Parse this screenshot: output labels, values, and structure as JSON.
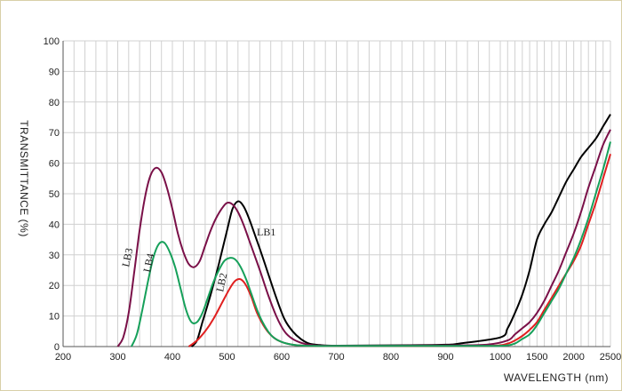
{
  "chart_data": {
    "type": "line",
    "title": "",
    "xlabel": "WAVELENGTH (nm)",
    "ylabel": "TRANSMITTANCE   (%)",
    "xlim": [
      200,
      2500
    ],
    "ylim": [
      0,
      100
    ],
    "grid": true,
    "x_ticks": [
      "200",
      "300",
      "400",
      "500",
      "600",
      "700",
      "800",
      "900",
      "1000",
      "1500",
      "2000",
      "2500"
    ],
    "y_ticks": [
      "0",
      "10",
      "20",
      "30",
      "40",
      "50",
      "60",
      "70",
      "80",
      "90",
      "100"
    ],
    "x_scale": "piecewise: linear 200-1000 nm, compressed 1000-2500 nm",
    "series": [
      {
        "name": "LB1",
        "color": "#000000",
        "x": [
          435,
          445,
          455,
          470,
          485,
          500,
          510,
          520,
          530,
          540,
          550,
          560,
          575,
          590,
          605,
          620,
          635,
          650,
          670,
          700,
          800,
          900,
          925,
          1000,
          1100,
          1200,
          1300,
          1400,
          1500,
          1600,
          1700,
          1800,
          1900,
          2000,
          2100,
          2200,
          2300,
          2400,
          2500
        ],
        "y": [
          0,
          2,
          8,
          17,
          27,
          38,
          45,
          47.5,
          46,
          42,
          37,
          32,
          24,
          16,
          9,
          5,
          2.5,
          1,
          0.5,
          0.3,
          0.4,
          0.6,
          1,
          3,
          6,
          11,
          17,
          25,
          35,
          40,
          44,
          49,
          54,
          58,
          62,
          65,
          68,
          72,
          76
        ]
      },
      {
        "name": "LB2",
        "color": "#e02020",
        "x": [
          430,
          445,
          460,
          475,
          490,
          505,
          515,
          525,
          535,
          545,
          555,
          570,
          585,
          600,
          620,
          640,
          660,
          700,
          800,
          900,
          990,
          1100,
          1200,
          1300,
          1400,
          1500,
          1600,
          1700,
          1800,
          1900,
          2000,
          2100,
          2200,
          2300,
          2400,
          2500
        ],
        "y": [
          0,
          2,
          5,
          9,
          14,
          19,
          21.5,
          22,
          20,
          16,
          11,
          6,
          3,
          1.5,
          0.6,
          0.3,
          0.2,
          0.2,
          0.2,
          0.2,
          0.3,
          1,
          2,
          3.5,
          5.5,
          8,
          12,
          16,
          20,
          24,
          28,
          33,
          40,
          47,
          55,
          63
        ]
      },
      {
        "name": "LB3",
        "color": "#7a1048",
        "x": [
          300,
          310,
          320,
          330,
          340,
          350,
          360,
          370,
          380,
          390,
          400,
          410,
          420,
          430,
          440,
          450,
          460,
          470,
          480,
          490,
          500,
          510,
          520,
          530,
          540,
          550,
          560,
          575,
          590,
          605,
          620,
          640,
          660,
          700,
          800,
          900,
          975,
          1100,
          1200,
          1300,
          1400,
          1500,
          1600,
          1700,
          1800,
          1900,
          2000,
          2100,
          2200,
          2300,
          2400,
          2500
        ],
        "y": [
          0,
          3,
          11,
          24,
          38,
          49,
          56,
          58.5,
          57,
          52,
          45,
          37,
          31,
          27,
          26,
          28,
          33,
          38,
          42,
          45,
          47,
          46.5,
          44,
          40,
          35,
          30,
          25,
          17,
          10,
          5,
          2.5,
          1,
          0.4,
          0.3,
          0.3,
          0.4,
          0.6,
          2,
          4,
          6,
          8,
          11,
          15,
          20,
          25,
          31,
          37,
          44,
          52,
          59,
          66,
          71
        ]
      },
      {
        "name": "LB4",
        "color": "#16a05a",
        "x": [
          325,
          335,
          345,
          355,
          365,
          375,
          385,
          395,
          405,
          415,
          425,
          435,
          445,
          455,
          465,
          475,
          485,
          495,
          505,
          515,
          525,
          535,
          545,
          555,
          565,
          575,
          585,
          600,
          620,
          640,
          660,
          700,
          800,
          900,
          985,
          1100,
          1200,
          1300,
          1400,
          1500,
          1600,
          1700,
          1800,
          1900,
          2000,
          2100,
          2200,
          2300,
          2400,
          2500
        ],
        "y": [
          0,
          4,
          12,
          21,
          29,
          33.5,
          34,
          31,
          26,
          19,
          12,
          8,
          8,
          11,
          16,
          21,
          25,
          28,
          29,
          28.5,
          26,
          22,
          17,
          12,
          8,
          5,
          3,
          1.5,
          0.6,
          0.3,
          0.2,
          0.2,
          0.2,
          0.2,
          0.2,
          0.4,
          1,
          2.5,
          4,
          7,
          11,
          15,
          19,
          24,
          29,
          35,
          42,
          50,
          58,
          67
        ]
      }
    ],
    "annotations": [
      "LB1",
      "LB2",
      "LB3",
      "LB4"
    ],
    "legend": "inline labels"
  }
}
